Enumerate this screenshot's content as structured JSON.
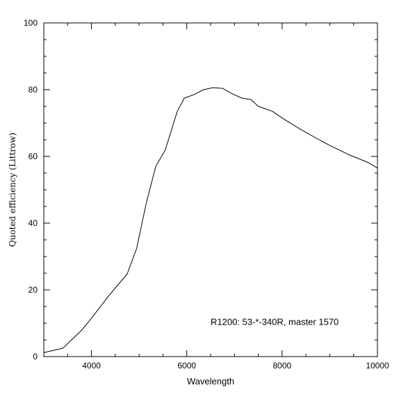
{
  "chart_data": {
    "type": "line",
    "title": "",
    "xlabel": "Wavelength",
    "ylabel": "Quoted efficiency (Littrow)",
    "xlim": [
      3000,
      10000
    ],
    "ylim": [
      0,
      100
    ],
    "xticks": [
      4000,
      6000,
      8000,
      10000
    ],
    "yticks": [
      0,
      20,
      40,
      60,
      80,
      100
    ],
    "x_tick_labels": [
      "4000",
      "6000",
      "8000",
      "10000"
    ],
    "y_tick_labels": [
      "0",
      "20",
      "40",
      "60",
      "80",
      "100"
    ],
    "grid": false,
    "series": [
      {
        "x": [
          3000,
          3400,
          3800,
          4000,
          4350,
          4750,
          4950,
          5150,
          5350,
          5550,
          5800,
          5950,
          6150,
          6350,
          6550,
          6750,
          6950,
          7150,
          7350,
          7500,
          7600,
          7800,
          8000,
          8400,
          8800,
          9000,
          9400,
          9800,
          10000
        ],
        "y": [
          1.2,
          2.5,
          8,
          11.5,
          18,
          24.8,
          32.5,
          46,
          57,
          62,
          73.5,
          77.5,
          78.5,
          80,
          80.6,
          80.4,
          78.8,
          77.5,
          77,
          75,
          74.5,
          73.5,
          71.5,
          68,
          64.8,
          63.3,
          60.5,
          58.2,
          56.5
        ],
        "color": "#000000"
      }
    ],
    "annotations": [
      {
        "text": "R1200: 53-*-340R, master 1570",
        "x": 6500,
        "y": 9.5
      }
    ]
  }
}
